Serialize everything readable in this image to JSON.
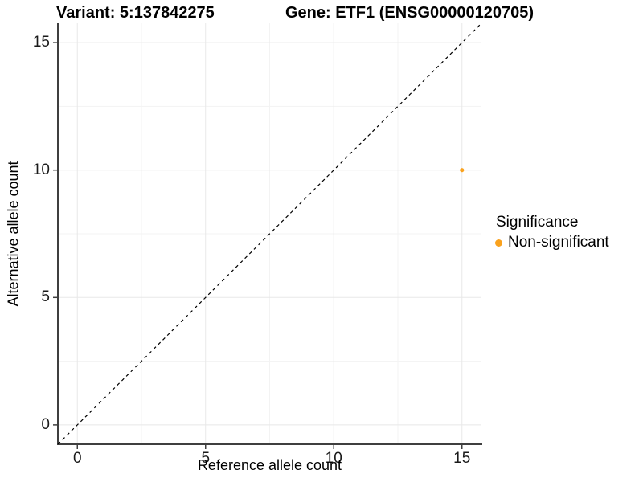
{
  "header": {
    "title_left": "Variant: 5:137842275",
    "title_right": "Gene: ETF1 (ENSG00000120705)"
  },
  "chart_data": {
    "type": "scatter",
    "title": "Variant: 5:137842275   Gene: ETF1 (ENSG00000120705)",
    "xlabel": "Reference allele count",
    "ylabel": "Alternative allele count",
    "xlim": [
      -0.76,
      15.76
    ],
    "ylim": [
      -0.76,
      15.76
    ],
    "x_ticks": [
      0,
      5,
      10,
      15
    ],
    "y_ticks": [
      0,
      5,
      10,
      15
    ],
    "x_minor_ticks": [
      2.5,
      7.5,
      12.5
    ],
    "y_minor_ticks": [
      2.5,
      7.5,
      12.5
    ],
    "grid": "on",
    "series": [
      {
        "name": "Non-significant",
        "points": [
          {
            "x": 15,
            "y": 10
          }
        ]
      }
    ],
    "reference_line": {
      "kind": "identity",
      "x1": -0.76,
      "y1": -0.76,
      "x2": 15.76,
      "y2": 15.76,
      "style": "dashed"
    },
    "legend": {
      "title": "Significance",
      "position": "right",
      "items": [
        {
          "label": "Non-significant",
          "color": "#FAA21E"
        }
      ]
    }
  },
  "colors": {
    "point": "#FAA21E",
    "grid_major": "#E8E8E8",
    "grid_minor": "#F3F3F3",
    "axis_line": "#3F3F3F",
    "reference_line": "#000000",
    "background": "#FFFFFF"
  }
}
